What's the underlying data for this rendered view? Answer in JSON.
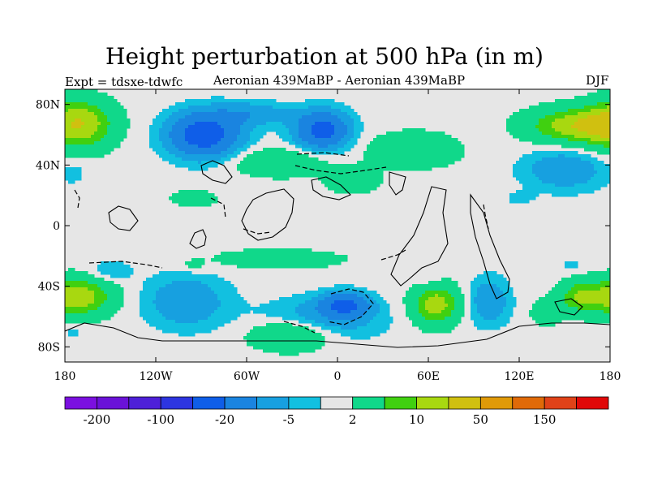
{
  "chart_data": {
    "type": "heatmap",
    "title": "Height perturbation at 500 hPa (in m)",
    "experiment": "Expt = tdsxe-tdwfc",
    "subtitle": "Aeronian 439MaBP - Aeronian 439MaBP",
    "season": "DJF",
    "x_ticks": [
      {
        "value": -180,
        "label": "180"
      },
      {
        "value": -120,
        "label": "120W"
      },
      {
        "value": -60,
        "label": "60W"
      },
      {
        "value": 0,
        "label": "0"
      },
      {
        "value": 60,
        "label": "60E"
      },
      {
        "value": 120,
        "label": "120E"
      },
      {
        "value": 180,
        "label": "180"
      }
    ],
    "y_ticks": [
      {
        "value": 80,
        "label": "80N"
      },
      {
        "value": 40,
        "label": "40N"
      },
      {
        "value": 0,
        "label": "0"
      },
      {
        "value": -40,
        "label": "40S"
      },
      {
        "value": -80,
        "label": "80S"
      }
    ],
    "xlim": [
      -180,
      180
    ],
    "ylim": [
      -90,
      90
    ],
    "colorbar": {
      "colors": [
        "#7b10e0",
        "#6a12d8",
        "#4e20d8",
        "#2d35e0",
        "#0f5ee8",
        "#1a84e0",
        "#17a0e0",
        "#12c0e0",
        "#e6e6e6",
        "#10d88a",
        "#40d010",
        "#a8d810",
        "#d0c010",
        "#e09a08",
        "#e06a08",
        "#e04218",
        "#e00808"
      ],
      "labels": [
        {
          "boundary": 1,
          "text": "-200"
        },
        {
          "boundary": 3,
          "text": "-100"
        },
        {
          "boundary": 5,
          "text": "-20"
        },
        {
          "boundary": 7,
          "text": "-5"
        },
        {
          "boundary": 9,
          "text": "2"
        },
        {
          "boundary": 11,
          "text": "10"
        },
        {
          "boundary": 13,
          "text": "50"
        },
        {
          "boundary": 15,
          "text": "150"
        }
      ]
    },
    "anomaly_regions": [
      {
        "lon": -172,
        "lat": 67,
        "rlon": 22,
        "rlat": 15,
        "amp": 25
      },
      {
        "lon": 188,
        "lat": 67,
        "rlon": 22,
        "rlat": 15,
        "amp": 25
      },
      {
        "lon": 160,
        "lat": 66,
        "rlon": 32,
        "rlat": 11,
        "amp": 22
      },
      {
        "lon": -88,
        "lat": 60,
        "rlon": 24,
        "rlat": 15,
        "amp": -24
      },
      {
        "lon": -56,
        "lat": 74,
        "rlon": 26,
        "rlat": 8,
        "amp": -8
      },
      {
        "lon": -10,
        "lat": 63,
        "rlon": 18,
        "rlat": 13,
        "amp": -22
      },
      {
        "lon": -38,
        "lat": 42,
        "rlon": 30,
        "rlat": 9,
        "amp": 9
      },
      {
        "lon": 10,
        "lat": 30,
        "rlon": 16,
        "rlat": 8,
        "amp": 8
      },
      {
        "lon": 50,
        "lat": 50,
        "rlon": 28,
        "rlat": 11,
        "amp": 9
      },
      {
        "lon": 150,
        "lat": 37,
        "rlon": 28,
        "rlat": 14,
        "amp": -9
      },
      {
        "lon": 120,
        "lat": 18,
        "rlon": 10,
        "rlat": 5,
        "amp": -3
      },
      {
        "lon": -175,
        "lat": 35,
        "rlon": 8,
        "rlat": 8,
        "amp": -4
      },
      {
        "lon": -95,
        "lat": 18,
        "rlon": 14,
        "rlat": 5,
        "amp": 7
      },
      {
        "lon": -172,
        "lat": -47,
        "rlon": 22,
        "rlat": 12,
        "amp": 22
      },
      {
        "lon": 188,
        "lat": -47,
        "rlon": 22,
        "rlat": 12,
        "amp": 22
      },
      {
        "lon": 160,
        "lat": -47,
        "rlon": 14,
        "rlat": 10,
        "amp": 14
      },
      {
        "lon": -100,
        "lat": -50,
        "rlon": 28,
        "rlat": 18,
        "amp": -9
      },
      {
        "lon": -150,
        "lat": -30,
        "rlon": 14,
        "rlat": 7,
        "amp": -5
      },
      {
        "lon": -40,
        "lat": -22,
        "rlon": 42,
        "rlat": 6,
        "amp": 7
      },
      {
        "lon": -95,
        "lat": -26,
        "rlon": 8,
        "rlat": 4,
        "amp": 4
      },
      {
        "lon": -10,
        "lat": -62,
        "rlon": 38,
        "rlat": 14,
        "amp": -9
      },
      {
        "lon": 5,
        "lat": -52,
        "rlon": 16,
        "rlat": 8,
        "amp": -18
      },
      {
        "lon": -30,
        "lat": -72,
        "rlon": 26,
        "rlat": 10,
        "amp": 13
      },
      {
        "lon": 65,
        "lat": -52,
        "rlon": 15,
        "rlat": 13,
        "amp": 20
      },
      {
        "lon": 100,
        "lat": -50,
        "rlon": 14,
        "rlat": 16,
        "amp": -9
      },
      {
        "lon": 60,
        "lat": -35,
        "rlon": 9,
        "rlat": 6,
        "amp": -4
      },
      {
        "lon": 138,
        "lat": -57,
        "rlon": 10,
        "rlat": 8,
        "amp": 7
      },
      {
        "lon": 155,
        "lat": -26,
        "rlon": 9,
        "rlat": 5,
        "amp": -3
      },
      {
        "lon": -175,
        "lat": -70,
        "rlon": 9,
        "rlat": 5,
        "amp": -3
      }
    ]
  }
}
